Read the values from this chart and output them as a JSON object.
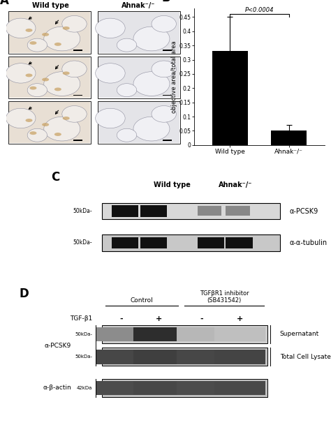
{
  "panel_A_label": "A",
  "panel_B_label": "B",
  "panel_C_label": "C",
  "panel_D_label": "D",
  "bar_categories": [
    "Wild type",
    "Ahnak⁻/⁻"
  ],
  "bar_values": [
    0.33,
    0.05
  ],
  "bar_errors": [
    0.12,
    0.02
  ],
  "bar_color": "#000000",
  "ylabel": "objective area/total area",
  "yticks": [
    0,
    0.05,
    0.1,
    0.15,
    0.2,
    0.25,
    0.3,
    0.35,
    0.4,
    0.45
  ],
  "pvalue_text": "P<0.0004",
  "panel_C_header_left": "Wild type",
  "panel_C_header_right": "Ahnak⁻/⁻",
  "panel_C_label1": "α-PCSK9",
  "panel_C_label2": "α-α-tubulin",
  "panel_D_header_control": "Control",
  "panel_D_header_inhibitor": "TGFβR1 inhibitor\n(SB431542)",
  "panel_D_tgf_label": "TGF-β1",
  "panel_D_tgf_values": [
    "-",
    "+",
    "-",
    "+"
  ],
  "panel_D_left_label1": "α-PCSK9",
  "panel_D_left_label2": "α-β-actin",
  "panel_D_right_label1": "Supernatant",
  "panel_D_right_label2": "Total Cell Lysate",
  "img_bg_wt": "#ddd5c8",
  "img_bg_ahnak": "#dcdcdc",
  "blot_bg": "#d0d0d0",
  "blot_bg_dark": "#b8b8b8"
}
